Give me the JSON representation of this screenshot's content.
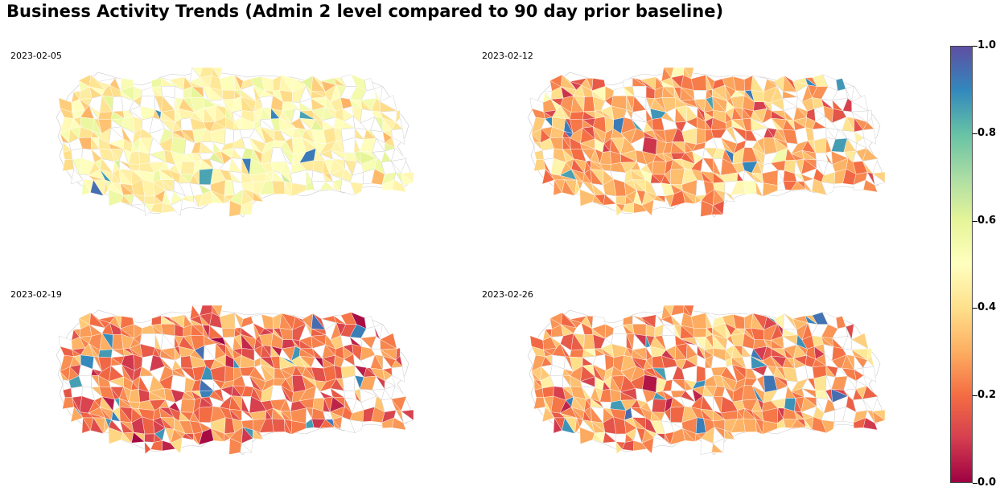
{
  "title": "Business Activity Trends (Admin 2 level compared to 90 day prior baseline)",
  "panels": [
    {
      "date": "2023-02-05",
      "mean_value": 0.47
    },
    {
      "date": "2023-02-12",
      "mean_value": 0.3
    },
    {
      "date": "2023-02-19",
      "mean_value": 0.22
    },
    {
      "date": "2023-02-26",
      "mean_value": 0.27
    }
  ],
  "colorbar": {
    "colormap": "Spectral",
    "min": 0.0,
    "max": 1.0,
    "ticks": [
      "0.0",
      "0.2",
      "0.4",
      "0.6",
      "0.8",
      "1.0"
    ],
    "colors": [
      "#9e0142",
      "#d53e4f",
      "#f46d43",
      "#fdae61",
      "#fee08b",
      "#ffffbf",
      "#e6f598",
      "#abdda4",
      "#66c2a5",
      "#3288bd",
      "#5e4fa2"
    ]
  },
  "no_data_color": "#ffffff",
  "boundary_color": "#c8c8c8"
}
